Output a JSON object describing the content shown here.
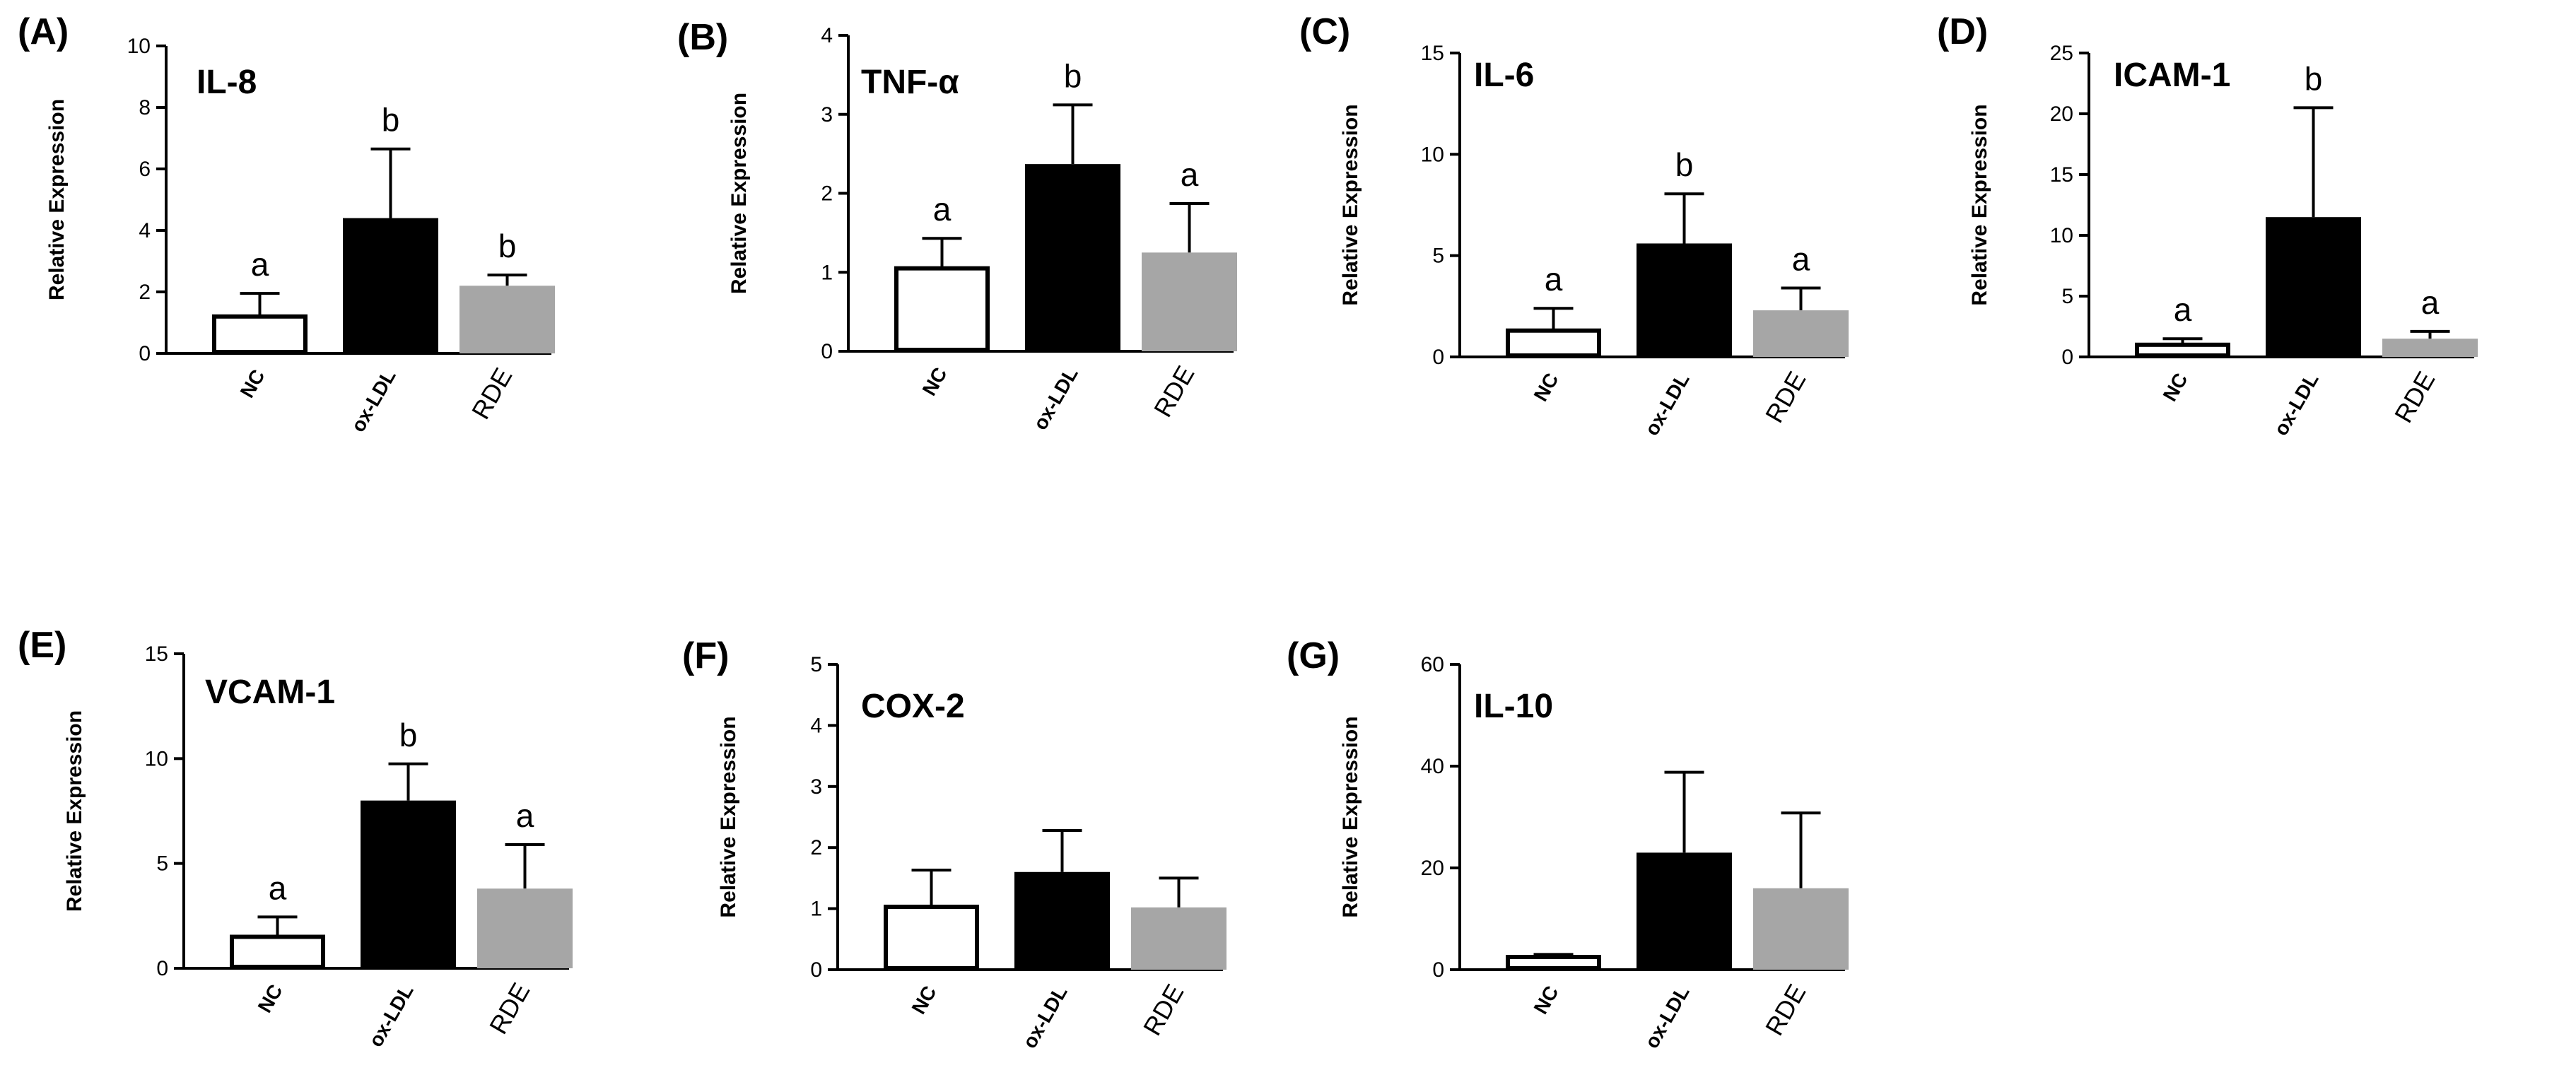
{
  "figure": {
    "x_categories": [
      "NC",
      "ox-LDL",
      "RDE"
    ],
    "y_axis_label": "Relative Expression",
    "bar_fills": [
      "#ffffff",
      "#000000",
      "#a6a6a6"
    ],
    "bar_strokes": [
      "#000000",
      "#000000",
      "#a6a6a6"
    ]
  },
  "chart_data": [
    {
      "type": "bar",
      "panel_label": "(A)",
      "title": "IL-8",
      "ylabel": "Relative Expression",
      "categories": [
        "NC",
        "ox-LDL",
        "RDE"
      ],
      "values": [
        1.2,
        4.4,
        2.2
      ],
      "errors": [
        0.75,
        2.25,
        0.35
      ],
      "letters": [
        "a",
        "b",
        "b"
      ],
      "ylim": [
        0,
        10
      ],
      "ticks": [
        0,
        2,
        4,
        6,
        8,
        10
      ]
    },
    {
      "type": "bar",
      "panel_label": "(B)",
      "title": "TNF-α",
      "ylabel": "Relative Expression",
      "categories": [
        "NC",
        "ox-LDL",
        "RDE"
      ],
      "values": [
        1.05,
        2.37,
        1.25
      ],
      "errors": [
        0.38,
        0.75,
        0.62
      ],
      "letters": [
        "a",
        "b",
        "a"
      ],
      "ylim": [
        0,
        4
      ],
      "ticks": [
        0,
        1,
        2,
        3,
        4
      ]
    },
    {
      "type": "bar",
      "panel_label": "(C)",
      "title": "IL-6",
      "ylabel": "Relative Expression",
      "categories": [
        "NC",
        "ox-LDL",
        "RDE"
      ],
      "values": [
        1.3,
        5.6,
        2.3
      ],
      "errors": [
        1.1,
        2.45,
        1.1
      ],
      "letters": [
        "a",
        "b",
        "a"
      ],
      "ylim": [
        0,
        15
      ],
      "ticks": [
        0,
        5,
        10,
        15
      ]
    },
    {
      "type": "bar",
      "panel_label": "(D)",
      "title": "ICAM-1",
      "ylabel": "Relative Expression",
      "categories": [
        "NC",
        "ox-LDL",
        "RDE"
      ],
      "values": [
        1.0,
        11.5,
        1.5
      ],
      "errors": [
        0.5,
        9.0,
        0.6
      ],
      "letters": [
        "a",
        "b",
        "a"
      ],
      "ylim": [
        0,
        25
      ],
      "ticks": [
        0,
        5,
        10,
        15,
        20,
        25
      ]
    },
    {
      "type": "bar",
      "panel_label": "(E)",
      "title": "VCAM-1",
      "ylabel": "Relative Expression",
      "categories": [
        "NC",
        "ox-LDL",
        "RDE"
      ],
      "values": [
        1.5,
        8.0,
        3.8
      ],
      "errors": [
        0.95,
        1.75,
        2.1
      ],
      "letters": [
        "a",
        "b",
        "a"
      ],
      "ylim": [
        0,
        15
      ],
      "ticks": [
        0,
        5,
        10,
        15
      ]
    },
    {
      "type": "bar",
      "panel_label": "(F)",
      "title": "COX-2",
      "ylabel": "Relative Expression",
      "categories": [
        "NC",
        "ox-LDL",
        "RDE"
      ],
      "values": [
        1.03,
        1.6,
        1.02
      ],
      "errors": [
        0.6,
        0.68,
        0.48
      ],
      "letters": [],
      "ylim": [
        0,
        5
      ],
      "ticks": [
        0,
        1,
        2,
        3,
        4,
        5
      ]
    },
    {
      "type": "bar",
      "panel_label": "(G)",
      "title": "IL-10",
      "ylabel": "Relative Expression",
      "categories": [
        "NC",
        "ox-LDL",
        "RDE"
      ],
      "values": [
        2.5,
        23.0,
        16.0
      ],
      "errors": [
        0.5,
        15.8,
        14.8
      ],
      "letters": [],
      "ylim": [
        0,
        60
      ],
      "ticks": [
        0,
        20,
        40,
        60
      ]
    }
  ]
}
